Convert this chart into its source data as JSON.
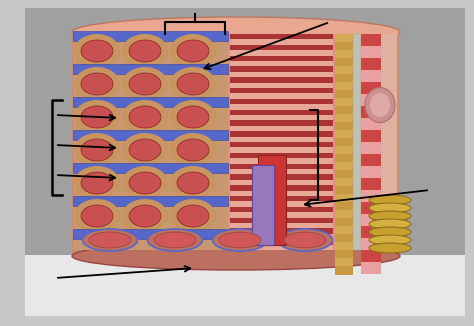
{
  "fig_width": 4.74,
  "fig_height": 3.26,
  "dpi": 100,
  "bg_color": "#c8c8c8",
  "photo_bg": "#a8a8a8",
  "model_base_color": "#d4907a",
  "fascicle_bg": "#d4a882",
  "fiber_color": "#c85050",
  "fiber_edge": "#8b2020",
  "band_color": "#5567c8",
  "band_edge": "#3344a0",
  "mid_light": "#e8a090",
  "mid_dark": "#b04040",
  "right_bg": "#d09878",
  "epi_color": "#c8a855",
  "sheath_pink": "#e8b0a0",
  "sheath_red": "#cc5555",
  "circle_color": "#d0a090",
  "spiral_color": "#c8a030",
  "bottom_bg": "#c87060",
  "bottom_fiber": "#d05050",
  "purple_color": "#9977bb",
  "arrow_color": "black",
  "top_ellipse_color": "#e0a090"
}
